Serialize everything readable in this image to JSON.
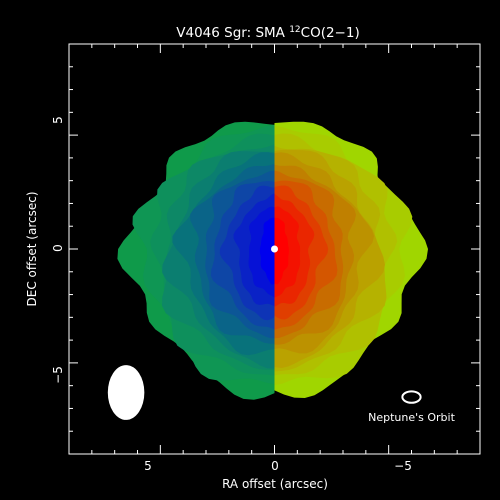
{
  "chart_data": {
    "type": "heatmap",
    "title": {
      "main": "V4046 Sgr: SMA ",
      "isotope_mass": "12",
      "species": "CO(2−1)"
    },
    "xlabel": "RA offset (arcsec)",
    "ylabel": "DEC offset (arcsec)",
    "xlim": [
      9,
      -9
    ],
    "ylim": [
      -9,
      9
    ],
    "xticks": [
      5,
      0,
      -5
    ],
    "xtick_labels": [
      "5",
      "0",
      "−5"
    ],
    "yticks": [
      5,
      0,
      -5
    ],
    "ytick_labels": [
      "5",
      "0",
      "−5"
    ],
    "grid": false,
    "colormap": "blue (approaching) → green → yellow → red (receding)",
    "levels": 12,
    "star_position": [
      0,
      0
    ],
    "beam": {
      "center": [
        6.5,
        -6.3
      ],
      "major_arcsec": 2.4,
      "minor_arcsec": 1.6,
      "orientation": "vertical"
    },
    "annotation": {
      "label": "Neptune's Orbit",
      "center": [
        -6.0,
        -6.5
      ],
      "width_arcsec": 0.8,
      "height_arcsec": 0.5
    }
  },
  "colors": {
    "background": "#000000",
    "axes": "#ffffff",
    "lobe_left": [
      "#0f9a4a",
      "#0f9654",
      "#0e905c",
      "#0d8866",
      "#0b7e70",
      "#08727b",
      "#0a6488",
      "#0c5696",
      "#0e46a6",
      "#0e34b6",
      "#0a22c6",
      "#0612d6",
      "#0000ee"
    ],
    "lobe_right": [
      "#a0d600",
      "#a8cc00",
      "#b0c000",
      "#b5b200",
      "#baa200",
      "#bc9200",
      "#c08000",
      "#c86c00",
      "#d45600",
      "#e03e00",
      "#ea2600",
      "#f41200",
      "#ff0000"
    ]
  }
}
